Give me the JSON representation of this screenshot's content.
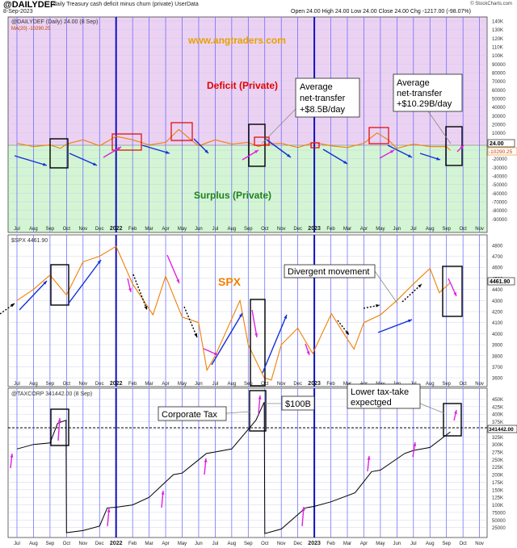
{
  "header": {
    "ticker": "@DAILYDEF",
    "description": "daily Treasury cash deficit minus churn (private)",
    "source": "UserData",
    "date": "8-Sep-2023",
    "ohlc": "Open 24.00  High 24.00  Low 24.00  Close 24.00  Chg -1217.00 (-98.07%)",
    "credit": "© StockCharts.com"
  },
  "colors": {
    "deficit_bg": "#ecd2f2",
    "surplus_bg": "#d3f5d3",
    "orange": "#f08000",
    "blue": "#1030d8",
    "magenta": "#e020e0",
    "vline": "#6060ff",
    "red": "#e00000",
    "green": "#208020"
  },
  "panel1": {
    "legend1": "@DAILYDEF (Daily) 24.00 (8 Sep)",
    "legend2": "MA(20) -10290.25",
    "website": "www.angtraders.com",
    "deficit_label": "Deficit (Private)",
    "surplus_label": "Surplus (Private)",
    "callout1": [
      "Average",
      "net-transfer",
      "+$8.5B/day"
    ],
    "callout2": [
      "Average",
      "net-transfer",
      "+$10.29B/day"
    ],
    "badge_last": "24.00",
    "badge_ma": "-10290.25"
  },
  "panel2": {
    "legend": "$SPX 4461.90",
    "spx_label": "SPX",
    "divergent_label": "Divergent movement",
    "badge_last": "4461.90"
  },
  "panel3": {
    "legend": "@TAXCORP 341442.00 (8 Sep)",
    "corp_label": "Corporate Tax",
    "label_100b": "$100B",
    "lower_label": [
      "Lower tax-take",
      "expectged"
    ],
    "badge_last": "341442.00"
  },
  "chart_data": [
    {
      "type": "line",
      "name": "@DAILYDEF",
      "ylim": [
        -100000,
        140000
      ],
      "y_ticks": [
        "140K",
        "130K",
        "120K",
        "110K",
        "100K",
        "90000",
        "80000",
        "70000",
        "60000",
        "50000",
        "40000",
        "30000",
        "20000",
        "10000",
        "0",
        "-10000",
        "-20000",
        "-30000",
        "-40000",
        "-50000",
        "-60000",
        "-70000",
        "-80000",
        "-90000"
      ],
      "series": [
        {
          "name": "MA(20)",
          "x": [
            "2021-07-01",
            "2021-08-01",
            "2021-09-01",
            "2021-09-20",
            "2021-10-01",
            "2021-11-01",
            "2021-12-01",
            "2022-01-01",
            "2022-02-01",
            "2022-03-01",
            "2022-04-01",
            "2022-04-25",
            "2022-05-15",
            "2022-06-01",
            "2022-07-01",
            "2022-08-01",
            "2022-09-01",
            "2022-09-20",
            "2022-10-01",
            "2022-11-01",
            "2022-12-01",
            "2023-01-01",
            "2023-02-01",
            "2023-03-01",
            "2023-04-01",
            "2023-04-25",
            "2023-05-15",
            "2023-06-01",
            "2023-07-01",
            "2023-08-01",
            "2023-09-01",
            "2023-09-08"
          ],
          "values": [
            -2000,
            -6000,
            -4000,
            -8000,
            -3000,
            2000,
            -5000,
            6000,
            2000,
            -4000,
            -1000,
            14000,
            3000,
            -5000,
            2000,
            -3000,
            -1000,
            -6000,
            -3000,
            -2000,
            -7000,
            -1000,
            -5000,
            -7000,
            -2000,
            10000,
            2000,
            -8000,
            -3000,
            -6000,
            -6000,
            -10290
          ]
        }
      ],
      "xlabels": [
        "Jul",
        "Aug",
        "Sep",
        "Oct",
        "Nov",
        "Dec",
        "2022",
        "Feb",
        "Mar",
        "Apr",
        "May",
        "Jun",
        "Jul",
        "Aug",
        "Sep",
        "Oct",
        "Nov",
        "Dec",
        "2023",
        "Feb",
        "Mar",
        "Apr",
        "May",
        "Jun",
        "Jul",
        "Aug",
        "Sep",
        "Oct",
        "Nov"
      ]
    },
    {
      "type": "line",
      "name": "$SPX",
      "ylim": [
        3550,
        4850
      ],
      "y_ticks": [
        "4800",
        "4700",
        "4600",
        "4500",
        "4400",
        "4300",
        "4200",
        "4100",
        "4000",
        "3900",
        "3800",
        "3700",
        "3600"
      ],
      "series": [
        {
          "name": "$SPX 4461.90",
          "x": [
            "2021-07-01",
            "2021-08-01",
            "2021-09-01",
            "2021-10-01",
            "2021-11-01",
            "2021-12-01",
            "2022-01-01",
            "2022-02-01",
            "2022-03-08",
            "2022-04-01",
            "2022-05-01",
            "2022-06-01",
            "2022-06-16",
            "2022-07-01",
            "2022-08-16",
            "2022-09-01",
            "2022-09-30",
            "2022-10-13",
            "2022-11-01",
            "2022-12-01",
            "2022-12-28",
            "2023-01-01",
            "2023-02-02",
            "2023-03-01",
            "2023-03-13",
            "2023-04-01",
            "2023-05-01",
            "2023-06-01",
            "2023-07-01",
            "2023-07-31",
            "2023-08-18",
            "2023-09-08"
          ],
          "values": [
            4300,
            4400,
            4530,
            4350,
            4650,
            4700,
            4790,
            4450,
            4170,
            4520,
            4150,
            4100,
            3670,
            3800,
            4300,
            3900,
            3600,
            3580,
            3900,
            4050,
            3820,
            3850,
            4180,
            3950,
            3860,
            4100,
            4170,
            4300,
            4450,
            4590,
            4370,
            4462
          ]
        }
      ],
      "xlabels": [
        "Jul",
        "Aug",
        "Sep",
        "Oct",
        "Nov",
        "Dec",
        "2022",
        "Feb",
        "Mar",
        "Apr",
        "May",
        "Jun",
        "Jul",
        "Aug",
        "Sep",
        "Oct",
        "Nov",
        "Dec",
        "2023",
        "Feb",
        "Mar",
        "Apr",
        "May",
        "Jun",
        "Jul",
        "Aug",
        "Sep",
        "Oct",
        "Nov"
      ]
    },
    {
      "type": "line",
      "name": "@TAXCORP",
      "ylim": [
        0,
        470000
      ],
      "y_ticks": [
        "450K",
        "425K",
        "400K",
        "375K",
        "350K",
        "325K",
        "300K",
        "275K",
        "250K",
        "225K",
        "200K",
        "175K",
        "150K",
        "125K",
        "100K",
        "75000",
        "50000",
        "25000"
      ],
      "series": [
        {
          "name": "@TAXCORP 341442.00",
          "x": [
            "2021-07-01",
            "2021-08-01",
            "2021-09-01",
            "2021-09-15",
            "2021-09-30",
            "2021-10-01",
            "2021-11-01",
            "2021-12-01",
            "2021-12-15",
            "2022-01-01",
            "2022-02-01",
            "2022-03-01",
            "2022-04-15",
            "2022-05-01",
            "2022-06-15",
            "2022-07-01",
            "2022-08-01",
            "2022-09-15",
            "2022-09-30",
            "2022-10-01",
            "2022-11-01",
            "2022-12-15",
            "2023-01-01",
            "2023-02-01",
            "2023-03-15",
            "2023-04-15",
            "2023-05-01",
            "2023-06-15",
            "2023-07-01",
            "2023-08-01",
            "2023-09-08"
          ],
          "values": [
            285000,
            300000,
            305000,
            370000,
            380000,
            8000,
            15000,
            30000,
            90000,
            92000,
            100000,
            125000,
            200000,
            205000,
            270000,
            275000,
            285000,
            380000,
            440000,
            5000,
            20000,
            90000,
            95000,
            110000,
            140000,
            210000,
            215000,
            270000,
            280000,
            290000,
            341442
          ]
        }
      ],
      "xlabels": [
        "Jul",
        "Aug",
        "Sep",
        "Oct",
        "Nov",
        "Dec",
        "2022",
        "Feb",
        "Mar",
        "Apr",
        "May",
        "Jun",
        "Jul",
        "Aug",
        "Sep",
        "Oct",
        "Nov",
        "Dec",
        "2023",
        "Feb",
        "Mar",
        "Apr",
        "May",
        "Jun",
        "Jul",
        "Aug",
        "Sep",
        "Oct",
        "Nov"
      ]
    }
  ]
}
